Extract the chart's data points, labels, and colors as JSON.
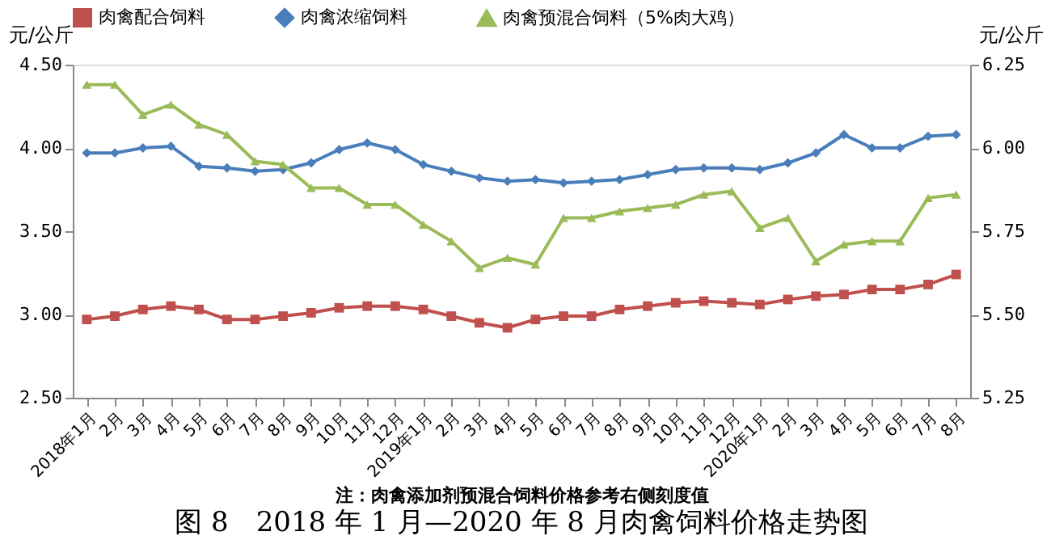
{
  "chart_data": {
    "type": "line",
    "title": "图 8　2018 年 1 月—2020 年 8 月肉禽饲料价格走势图",
    "ylabel": "元/公斤",
    "y2label": "元/公斤",
    "annotations": [
      "注：肉禽添加剂预混合饲料价格参考右侧刻度值"
    ],
    "categories": [
      "2018年1月",
      "2月",
      "3月",
      "4月",
      "5月",
      "6月",
      "7月",
      "8月",
      "9月",
      "10月",
      "11月",
      "12月",
      "2019年1月",
      "2月",
      "3月",
      "4月",
      "5月",
      "6月",
      "7月",
      "8月",
      "9月",
      "10月",
      "11月",
      "12月",
      "2020年1月",
      "2月",
      "3月",
      "4月",
      "5月",
      "6月",
      "7月",
      "8月"
    ],
    "series": [
      {
        "name": "肉禽配合饲料",
        "color": "#c0504d",
        "marker": "square",
        "values": [
          2.97,
          2.99,
          3.03,
          3.05,
          3.03,
          2.97,
          2.97,
          2.99,
          3.01,
          3.04,
          3.05,
          3.05,
          3.03,
          2.99,
          2.95,
          2.92,
          2.97,
          2.99,
          2.99,
          3.03,
          3.05,
          3.07,
          3.08,
          3.07,
          3.06,
          3.09,
          3.11,
          3.12,
          3.15,
          3.15,
          3.18,
          3.24
        ]
      },
      {
        "name": "肉禽浓缩饲料",
        "color": "#4a7ebb",
        "marker": "diamond",
        "values": [
          3.97,
          3.97,
          4.0,
          4.01,
          3.89,
          3.88,
          3.86,
          3.87,
          3.91,
          3.99,
          4.03,
          3.99,
          3.9,
          3.86,
          3.82,
          3.8,
          3.81,
          3.79,
          3.8,
          3.81,
          3.84,
          3.87,
          3.88,
          3.88,
          3.87,
          3.91,
          3.97,
          4.08,
          4.0,
          4.0,
          4.07,
          4.08
        ]
      },
      {
        "name": "肉禽预混合饲料（5%肉大鸡）",
        "color": "#9bbb59",
        "marker": "triangle",
        "axis": "y2",
        "values": [
          6.19,
          6.19,
          6.1,
          6.13,
          6.07,
          6.04,
          5.96,
          5.95,
          5.88,
          5.88,
          5.83,
          5.83,
          5.77,
          5.72,
          5.64,
          5.67,
          5.65,
          5.79,
          5.79,
          5.81,
          5.82,
          5.83,
          5.86,
          5.87,
          5.76,
          5.79,
          5.66,
          5.71,
          5.72,
          5.72,
          5.85,
          5.86
        ]
      }
    ],
    "ylim": [
      2.5,
      4.5
    ],
    "yticks": [
      {
        "value": 2.5,
        "label": "2.50"
      },
      {
        "value": 3.0,
        "label": "3.00"
      },
      {
        "value": 3.5,
        "label": "3.50"
      },
      {
        "value": 4.0,
        "label": "4.00"
      },
      {
        "value": 4.5,
        "label": "4.50"
      }
    ],
    "y2lim": [
      5.25,
      6.25
    ],
    "y2ticks": [
      {
        "value": 5.25,
        "label": "5.25"
      },
      {
        "value": 5.5,
        "label": "5.50"
      },
      {
        "value": 5.75,
        "label": "5.75"
      },
      {
        "value": 6.0,
        "label": "6.00"
      },
      {
        "value": 6.25,
        "label": "6.25"
      }
    ],
    "grid": false,
    "legend": "top"
  }
}
